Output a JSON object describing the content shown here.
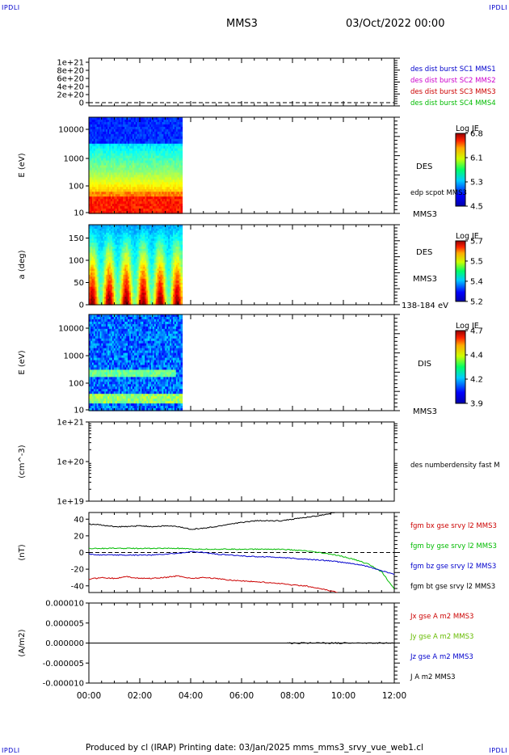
{
  "corners": {
    "tl": "IPDLI",
    "tr": "IPDLI",
    "bl": "IPDLI",
    "br": "IPDLI"
  },
  "header": {
    "spacecraft": "MMS3",
    "date": "03/Oct/2022 00:00"
  },
  "footer": "Produced by cl (IRAP)   Printing date: 03/Jan/2025   mms_mms3_srvy_vue_web1.cl",
  "chart_data": [
    {
      "type": "line",
      "ylabel": "",
      "yticks": [
        "1e+21",
        "8e+20",
        "6e+20",
        "4e+20",
        "2e+20",
        "0"
      ],
      "ylim": [
        0,
        1.1e+21
      ],
      "series": [
        {
          "name": "des dist burst SC1 MMS1",
          "color": "#0000cc",
          "values": []
        },
        {
          "name": "des dist burst SC2 MMS2",
          "color": "#cc00cc",
          "values": []
        },
        {
          "name": "des dist burst SC3 MMS3",
          "color": "#cc0000",
          "values": []
        },
        {
          "name": "des dist burst SC4 MMS4",
          "color": "#00bb00",
          "values": []
        }
      ],
      "dashed_zero": true
    },
    {
      "type": "heatmap",
      "ylabel": "E (eV)",
      "yscale": "log",
      "yticks": [
        "10000",
        "1000",
        "100",
        "10"
      ],
      "right_labels": [
        "DES",
        "edp scpot MMS3",
        "MMS3"
      ],
      "colorbar": {
        "title": "Log JE",
        "ticks": [
          "6.8",
          "6.1",
          "5.3",
          "4.5"
        ]
      },
      "data_time_range": [
        "00:00",
        "03:40"
      ]
    },
    {
      "type": "heatmap",
      "ylabel": "a (deg)",
      "yticks": [
        "150",
        "100",
        "50",
        "0"
      ],
      "right_labels": [
        "DES",
        "MMS3",
        "138-184 eV"
      ],
      "colorbar": {
        "title": "Log JE",
        "ticks": [
          "5.7",
          "5.5",
          "5.4",
          "5.2"
        ]
      },
      "data_time_range": [
        "00:00",
        "03:40"
      ]
    },
    {
      "type": "heatmap",
      "ylabel": "E (eV)",
      "yscale": "log",
      "yticks": [
        "10000",
        "1000",
        "100",
        "10"
      ],
      "right_labels": [
        "DIS",
        "MMS3"
      ],
      "colorbar": {
        "title": "Log JE",
        "ticks": [
          "4.7",
          "4.4",
          "4.2",
          "3.9"
        ]
      },
      "data_time_range": [
        "00:00",
        "03:40"
      ]
    },
    {
      "type": "line",
      "ylabel": "(cm^-3)",
      "yscale": "log",
      "yticks": [
        "1e+21",
        "1e+20",
        "1e+19"
      ],
      "series": [
        {
          "name": "des numberdensity fast M",
          "color": "#000000",
          "values": []
        }
      ]
    },
    {
      "type": "line",
      "ylabel": "(nT)",
      "yticks": [
        "40",
        "20",
        "0",
        "-20",
        "-40"
      ],
      "ylim": [
        -48,
        48
      ],
      "x": [
        0,
        0.5,
        1,
        1.5,
        2,
        2.5,
        3,
        3.5,
        4,
        4.5,
        5,
        5.5,
        6,
        6.5,
        7,
        7.5,
        8,
        8.5,
        9,
        9.5,
        10,
        10.5,
        11,
        11.5,
        12
      ],
      "series": [
        {
          "name": "fgm bx gse srvy l2 MMS3",
          "color": "#cc0000",
          "values": [
            -32,
            -30,
            -31,
            -29,
            -31,
            -31,
            -30,
            -28,
            -31,
            -30,
            -31,
            -33,
            -34,
            -35,
            -36,
            -37,
            -39,
            -40,
            -43,
            -46,
            -50,
            null,
            null,
            null,
            null
          ]
        },
        {
          "name": "fgm by gse srvy l2 MMS3",
          "color": "#00bb00",
          "values": [
            5,
            5,
            5,
            5,
            5,
            5,
            5,
            5,
            4,
            4,
            4,
            4,
            4,
            4,
            4,
            4,
            3,
            2,
            0,
            -2,
            -5,
            -9,
            -14,
            -23,
            -44
          ]
        },
        {
          "name": "fgm bz gse srvy l2 MMS3",
          "color": "#0000cc",
          "values": [
            -2,
            -3,
            -3,
            -3,
            -3,
            -3,
            -2,
            -1,
            1,
            0,
            -2,
            -3,
            -4,
            -5,
            -5,
            -6,
            -7,
            -8,
            -9,
            -10,
            -12,
            -14,
            -17,
            -22,
            -26
          ]
        },
        {
          "name": "fgm bt gse srvy l2 MMS3",
          "color": "#000000",
          "values": [
            34,
            33,
            31,
            31,
            32,
            31,
            32,
            31,
            28,
            29,
            31,
            34,
            36,
            38,
            38,
            38,
            40,
            42,
            44,
            47,
            50,
            null,
            null,
            null,
            null
          ]
        }
      ],
      "dashed_zero": true
    },
    {
      "type": "line",
      "ylabel": "(A/m2)",
      "yticks": [
        "0.000010",
        "0.000005",
        "0.000000",
        "-0.000005",
        "-0.000010"
      ],
      "ylim": [
        -1e-05,
        1e-05
      ],
      "series": [
        {
          "name": "Jx gse A m2 MMS3",
          "color": "#cc0000",
          "values": []
        },
        {
          "name": "Jy gse A m2 MMS3",
          "color": "#66bb00",
          "values": []
        },
        {
          "name": "Jz gse A m2 MMS3",
          "color": "#0000cc",
          "values": []
        },
        {
          "name": "J A m2 MMS3",
          "color": "#000000",
          "values": [
            0,
            0,
            0,
            0,
            0
          ]
        }
      ],
      "zero_line": true
    }
  ],
  "x_axis": {
    "ticks": [
      "00:00",
      "02:00",
      "04:00",
      "06:00",
      "08:00",
      "10:00",
      "12:00"
    ],
    "range": [
      0,
      12
    ]
  }
}
